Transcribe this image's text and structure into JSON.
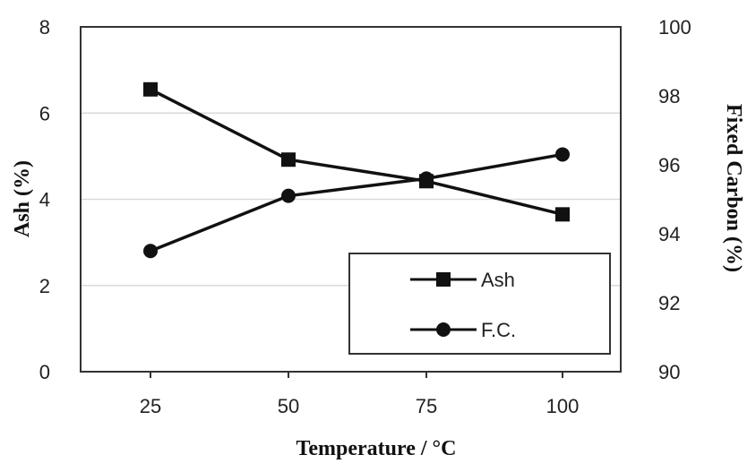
{
  "chart_data": {
    "type": "line",
    "x": [
      25,
      50,
      75,
      100
    ],
    "xlabel": "Temperature / °C",
    "ylabel": "Ash (%)",
    "y2label": "Fixed Carbon (%)",
    "ylim": [
      0,
      8
    ],
    "y2lim": [
      90,
      100
    ],
    "yticks": [
      0,
      2,
      4,
      6,
      8
    ],
    "y2ticks": [
      90,
      92,
      94,
      96,
      98,
      100
    ],
    "grid": true,
    "legend_position": "bottom-right",
    "series": [
      {
        "name": "Ash",
        "axis": "left",
        "marker": "square",
        "values": [
          6.55,
          4.92,
          4.42,
          3.65
        ]
      },
      {
        "name": "F.C.",
        "axis": "right",
        "marker": "circle",
        "values": [
          93.5,
          95.1,
          95.6,
          96.3
        ]
      }
    ],
    "colors": {
      "line": "#111111",
      "grid": "#d9d9d9",
      "frame": "#333333"
    }
  }
}
